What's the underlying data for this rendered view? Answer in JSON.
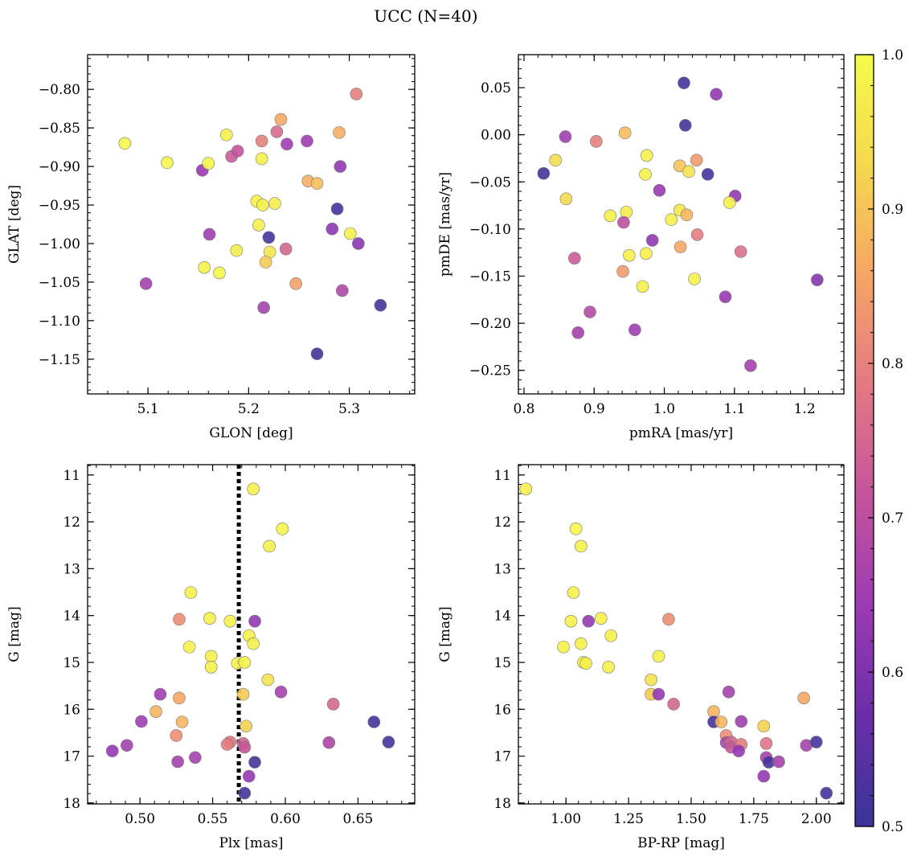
{
  "title": "UCC (N=40)",
  "chart_data": [
    {
      "type": "scatter",
      "xlabel": "GLON [deg]",
      "ylabel": "GLAT [deg]",
      "xlim": [
        5.04,
        5.365
      ],
      "ylim": [
        -1.195,
        -0.755
      ],
      "yinvert": false,
      "xticks": [
        5.1,
        5.2,
        5.3
      ],
      "xtick_labels": [
        "5.1",
        "5.2",
        "5.3"
      ],
      "yticks": [
        -0.8,
        -0.85,
        -0.9,
        -0.95,
        -1.0,
        -1.05,
        -1.1,
        -1.15
      ],
      "ytick_labels": [
        "−0.80",
        "−0.85",
        "−0.90",
        "−0.95",
        "−1.00",
        "−1.05",
        "−1.10",
        "−1.15"
      ],
      "points": [
        {
          "x": 5.077,
          "y": -0.87,
          "c": 0.99
        },
        {
          "x": 5.119,
          "y": -0.895,
          "c": 0.99
        },
        {
          "x": 5.098,
          "y": -1.052,
          "c": 0.66
        },
        {
          "x": 5.154,
          "y": -0.905,
          "c": 0.64
        },
        {
          "x": 5.16,
          "y": -0.896,
          "c": 0.99
        },
        {
          "x": 5.178,
          "y": -0.859,
          "c": 0.98
        },
        {
          "x": 5.183,
          "y": -0.887,
          "c": 0.73
        },
        {
          "x": 5.189,
          "y": -0.88,
          "c": 0.71
        },
        {
          "x": 5.161,
          "y": -0.988,
          "c": 0.65
        },
        {
          "x": 5.156,
          "y": -1.031,
          "c": 0.98
        },
        {
          "x": 5.171,
          "y": -1.038,
          "c": 0.99
        },
        {
          "x": 5.188,
          "y": -1.009,
          "c": 0.97
        },
        {
          "x": 5.213,
          "y": -0.867,
          "c": 0.8
        },
        {
          "x": 5.213,
          "y": -0.89,
          "c": 0.98
        },
        {
          "x": 5.228,
          "y": -0.855,
          "c": 0.76
        },
        {
          "x": 5.232,
          "y": -0.839,
          "c": 0.86
        },
        {
          "x": 5.238,
          "y": -0.871,
          "c": 0.65
        },
        {
          "x": 5.208,
          "y": -0.945,
          "c": 0.98
        },
        {
          "x": 5.214,
          "y": -0.95,
          "c": 0.98
        },
        {
          "x": 5.226,
          "y": -0.948,
          "c": 0.97
        },
        {
          "x": 5.21,
          "y": -0.976,
          "c": 0.98
        },
        {
          "x": 5.22,
          "y": -0.992,
          "c": 0.52
        },
        {
          "x": 5.221,
          "y": -1.011,
          "c": 0.96
        },
        {
          "x": 5.217,
          "y": -1.024,
          "c": 0.91
        },
        {
          "x": 5.237,
          "y": -1.007,
          "c": 0.75
        },
        {
          "x": 5.215,
          "y": -1.083,
          "c": 0.66
        },
        {
          "x": 5.258,
          "y": -0.867,
          "c": 0.65
        },
        {
          "x": 5.259,
          "y": -0.919,
          "c": 0.87
        },
        {
          "x": 5.268,
          "y": -0.922,
          "c": 0.89
        },
        {
          "x": 5.247,
          "y": -1.052,
          "c": 0.85
        },
        {
          "x": 5.268,
          "y": -1.143,
          "c": 0.51
        },
        {
          "x": 5.29,
          "y": -0.856,
          "c": 0.87
        },
        {
          "x": 5.307,
          "y": -0.806,
          "c": 0.8
        },
        {
          "x": 5.291,
          "y": -0.9,
          "c": 0.63
        },
        {
          "x": 5.288,
          "y": -0.955,
          "c": 0.52
        },
        {
          "x": 5.283,
          "y": -0.981,
          "c": 0.62
        },
        {
          "x": 5.301,
          "y": -0.987,
          "c": 0.98
        },
        {
          "x": 5.309,
          "y": -1.0,
          "c": 0.62
        },
        {
          "x": 5.293,
          "y": -1.061,
          "c": 0.68
        },
        {
          "x": 5.331,
          "y": -1.08,
          "c": 0.52
        }
      ]
    },
    {
      "type": "scatter",
      "xlabel": "pmRA [mas/yr]",
      "ylabel": "pmDE [mas/yr]",
      "xlim": [
        0.792,
        1.256
      ],
      "ylim": [
        -0.275,
        0.085
      ],
      "yinvert": false,
      "xticks": [
        0.8,
        0.9,
        1.0,
        1.1,
        1.2
      ],
      "xtick_labels": [
        "0.8",
        "0.9",
        "1.0",
        "1.1",
        "1.2"
      ],
      "yticks": [
        0.05,
        0.0,
        -0.05,
        -0.1,
        -0.15,
        -0.2,
        -0.25
      ],
      "ytick_labels": [
        "0.05",
        "0.00",
        "−0.05",
        "−0.10",
        "−0.15",
        "−0.20",
        "−0.25"
      ],
      "points": [
        {
          "x": 1.028,
          "y": 0.055,
          "c": 0.52
        },
        {
          "x": 1.074,
          "y": 0.043,
          "c": 0.63
        },
        {
          "x": 1.03,
          "y": 0.01,
          "c": 0.52
        },
        {
          "x": 0.859,
          "y": -0.002,
          "c": 0.65
        },
        {
          "x": 0.903,
          "y": -0.007,
          "c": 0.8
        },
        {
          "x": 0.944,
          "y": 0.002,
          "c": 0.89
        },
        {
          "x": 0.845,
          "y": -0.027,
          "c": 0.94
        },
        {
          "x": 0.828,
          "y": -0.041,
          "c": 0.52
        },
        {
          "x": 0.975,
          "y": -0.022,
          "c": 0.98
        },
        {
          "x": 0.973,
          "y": -0.042,
          "c": 0.98
        },
        {
          "x": 1.022,
          "y": -0.033,
          "c": 0.9
        },
        {
          "x": 1.035,
          "y": -0.039,
          "c": 0.95
        },
        {
          "x": 1.046,
          "y": -0.027,
          "c": 0.84
        },
        {
          "x": 1.062,
          "y": -0.042,
          "c": 0.52
        },
        {
          "x": 0.993,
          "y": -0.059,
          "c": 0.64
        },
        {
          "x": 1.101,
          "y": -0.065,
          "c": 0.63
        },
        {
          "x": 0.86,
          "y": -0.068,
          "c": 0.93
        },
        {
          "x": 1.093,
          "y": -0.072,
          "c": 0.98
        },
        {
          "x": 0.923,
          "y": -0.086,
          "c": 0.98
        },
        {
          "x": 0.946,
          "y": -0.082,
          "c": 0.97
        },
        {
          "x": 1.01,
          "y": -0.09,
          "c": 0.98
        },
        {
          "x": 1.022,
          "y": -0.08,
          "c": 0.96
        },
        {
          "x": 1.032,
          "y": -0.085,
          "c": 0.88
        },
        {
          "x": 0.983,
          "y": -0.112,
          "c": 0.63
        },
        {
          "x": 1.023,
          "y": -0.119,
          "c": 0.86
        },
        {
          "x": 1.047,
          "y": -0.106,
          "c": 0.79
        },
        {
          "x": 1.109,
          "y": -0.124,
          "c": 0.77
        },
        {
          "x": 0.95,
          "y": -0.128,
          "c": 0.98
        },
        {
          "x": 0.974,
          "y": -0.126,
          "c": 0.98
        },
        {
          "x": 0.872,
          "y": -0.131,
          "c": 0.73
        },
        {
          "x": 0.941,
          "y": -0.145,
          "c": 0.84
        },
        {
          "x": 0.969,
          "y": -0.161,
          "c": 0.98
        },
        {
          "x": 1.043,
          "y": -0.153,
          "c": 0.98
        },
        {
          "x": 1.218,
          "y": -0.154,
          "c": 0.61
        },
        {
          "x": 1.087,
          "y": -0.172,
          "c": 0.64
        },
        {
          "x": 0.942,
          "y": -0.093,
          "c": 0.7
        },
        {
          "x": 0.894,
          "y": -0.188,
          "c": 0.69
        },
        {
          "x": 0.877,
          "y": -0.21,
          "c": 0.66
        },
        {
          "x": 0.958,
          "y": -0.207,
          "c": 0.65
        },
        {
          "x": 1.123,
          "y": -0.245,
          "c": 0.66
        }
      ]
    },
    {
      "type": "scatter",
      "xlabel": "Plx [mas]",
      "ylabel": "G [mag]",
      "xlim": [
        0.464,
        0.689
      ],
      "ylim": [
        18.02,
        10.78
      ],
      "yinvert": true,
      "xticks": [
        0.5,
        0.55,
        0.6,
        0.65
      ],
      "xtick_labels": [
        "0.50",
        "0.55",
        "0.60",
        "0.65"
      ],
      "yticks": [
        11,
        12,
        13,
        14,
        15,
        16,
        17,
        18
      ],
      "ytick_labels": [
        "11",
        "12",
        "13",
        "14",
        "15",
        "16",
        "17",
        "18"
      ],
      "vline": 0.568,
      "points": [
        {
          "x": 0.578,
          "y": 11.3,
          "c": 0.98
        },
        {
          "x": 0.598,
          "y": 12.15,
          "c": 0.99
        },
        {
          "x": 0.589,
          "y": 12.52,
          "c": 0.98
        },
        {
          "x": 0.535,
          "y": 13.51,
          "c": 0.98
        },
        {
          "x": 0.527,
          "y": 14.08,
          "c": 0.82
        },
        {
          "x": 0.548,
          "y": 14.06,
          "c": 0.98
        },
        {
          "x": 0.562,
          "y": 14.12,
          "c": 0.98
        },
        {
          "x": 0.579,
          "y": 14.12,
          "c": 0.63
        },
        {
          "x": 0.575,
          "y": 14.43,
          "c": 0.98
        },
        {
          "x": 0.578,
          "y": 14.6,
          "c": 0.98
        },
        {
          "x": 0.534,
          "y": 14.67,
          "c": 0.98
        },
        {
          "x": 0.549,
          "y": 14.87,
          "c": 0.98
        },
        {
          "x": 0.549,
          "y": 15.1,
          "c": 0.98
        },
        {
          "x": 0.567,
          "y": 15.02,
          "c": 0.98
        },
        {
          "x": 0.572,
          "y": 15.0,
          "c": 0.98
        },
        {
          "x": 0.588,
          "y": 15.37,
          "c": 0.95
        },
        {
          "x": 0.597,
          "y": 15.63,
          "c": 0.66
        },
        {
          "x": 0.571,
          "y": 15.68,
          "c": 0.91
        },
        {
          "x": 0.514,
          "y": 15.68,
          "c": 0.65
        },
        {
          "x": 0.527,
          "y": 15.76,
          "c": 0.86
        },
        {
          "x": 0.633,
          "y": 15.89,
          "c": 0.75
        },
        {
          "x": 0.511,
          "y": 16.05,
          "c": 0.88
        },
        {
          "x": 0.501,
          "y": 16.26,
          "c": 0.65
        },
        {
          "x": 0.529,
          "y": 16.27,
          "c": 0.88
        },
        {
          "x": 0.661,
          "y": 16.27,
          "c": 0.52
        },
        {
          "x": 0.573,
          "y": 16.36,
          "c": 0.92
        },
        {
          "x": 0.525,
          "y": 16.56,
          "c": 0.82
        },
        {
          "x": 0.562,
          "y": 16.7,
          "c": 0.78
        },
        {
          "x": 0.571,
          "y": 16.73,
          "c": 0.75
        },
        {
          "x": 0.63,
          "y": 16.71,
          "c": 0.67
        },
        {
          "x": 0.671,
          "y": 16.7,
          "c": 0.52
        },
        {
          "x": 0.56,
          "y": 16.75,
          "c": 0.79
        },
        {
          "x": 0.572,
          "y": 16.81,
          "c": 0.72
        },
        {
          "x": 0.491,
          "y": 16.77,
          "c": 0.66
        },
        {
          "x": 0.481,
          "y": 16.89,
          "c": 0.63
        },
        {
          "x": 0.538,
          "y": 17.03,
          "c": 0.66
        },
        {
          "x": 0.526,
          "y": 17.12,
          "c": 0.66
        },
        {
          "x": 0.579,
          "y": 17.13,
          "c": 0.52
        },
        {
          "x": 0.575,
          "y": 17.43,
          "c": 0.63
        },
        {
          "x": 0.572,
          "y": 17.79,
          "c": 0.52
        }
      ]
    },
    {
      "type": "scatter",
      "xlabel": "BP-RP [mag]",
      "ylabel": "G [mag]",
      "xlim": [
        0.81,
        2.11
      ],
      "ylim": [
        18.02,
        10.78
      ],
      "yinvert": true,
      "xticks": [
        1.0,
        1.25,
        1.5,
        1.75,
        2.0
      ],
      "xtick_labels": [
        "1.00",
        "1.25",
        "1.50",
        "1.75",
        "2.00"
      ],
      "yticks": [
        11,
        12,
        13,
        14,
        15,
        16,
        17,
        18
      ],
      "ytick_labels": [
        "11",
        "12",
        "13",
        "14",
        "15",
        "16",
        "17",
        "18"
      ],
      "points": [
        {
          "x": 0.84,
          "y": 11.3,
          "c": 0.98
        },
        {
          "x": 1.04,
          "y": 12.15,
          "c": 0.99
        },
        {
          "x": 1.06,
          "y": 12.52,
          "c": 0.98
        },
        {
          "x": 1.03,
          "y": 13.51,
          "c": 0.98
        },
        {
          "x": 1.02,
          "y": 14.12,
          "c": 0.98
        },
        {
          "x": 1.09,
          "y": 14.12,
          "c": 0.63
        },
        {
          "x": 1.14,
          "y": 14.06,
          "c": 0.98
        },
        {
          "x": 1.41,
          "y": 14.08,
          "c": 0.82
        },
        {
          "x": 1.18,
          "y": 14.43,
          "c": 0.98
        },
        {
          "x": 0.99,
          "y": 14.67,
          "c": 0.98
        },
        {
          "x": 1.06,
          "y": 14.6,
          "c": 0.98
        },
        {
          "x": 1.07,
          "y": 15.0,
          "c": 0.98
        },
        {
          "x": 1.08,
          "y": 15.02,
          "c": 0.98
        },
        {
          "x": 1.17,
          "y": 15.1,
          "c": 0.98
        },
        {
          "x": 1.37,
          "y": 14.87,
          "c": 0.98
        },
        {
          "x": 1.34,
          "y": 15.37,
          "c": 0.95
        },
        {
          "x": 1.34,
          "y": 15.68,
          "c": 0.91
        },
        {
          "x": 1.37,
          "y": 15.68,
          "c": 0.63
        },
        {
          "x": 1.43,
          "y": 15.89,
          "c": 0.75
        },
        {
          "x": 1.65,
          "y": 15.63,
          "c": 0.66
        },
        {
          "x": 1.95,
          "y": 15.76,
          "c": 0.86
        },
        {
          "x": 1.59,
          "y": 16.05,
          "c": 0.88
        },
        {
          "x": 1.59,
          "y": 16.27,
          "c": 0.52
        },
        {
          "x": 1.62,
          "y": 16.27,
          "c": 0.88
        },
        {
          "x": 1.7,
          "y": 16.26,
          "c": 0.65
        },
        {
          "x": 1.79,
          "y": 16.36,
          "c": 0.92
        },
        {
          "x": 1.64,
          "y": 16.56,
          "c": 0.82
        },
        {
          "x": 1.64,
          "y": 16.71,
          "c": 0.67
        },
        {
          "x": 1.66,
          "y": 16.7,
          "c": 0.75
        },
        {
          "x": 1.66,
          "y": 16.81,
          "c": 0.72
        },
        {
          "x": 1.7,
          "y": 16.75,
          "c": 0.79
        },
        {
          "x": 1.8,
          "y": 16.73,
          "c": 0.78
        },
        {
          "x": 1.69,
          "y": 16.89,
          "c": 0.63
        },
        {
          "x": 1.96,
          "y": 16.77,
          "c": 0.66
        },
        {
          "x": 2.0,
          "y": 16.7,
          "c": 0.52
        },
        {
          "x": 1.8,
          "y": 17.03,
          "c": 0.66
        },
        {
          "x": 1.81,
          "y": 17.13,
          "c": 0.52
        },
        {
          "x": 1.85,
          "y": 17.12,
          "c": 0.66
        },
        {
          "x": 1.79,
          "y": 17.43,
          "c": 0.63
        },
        {
          "x": 2.04,
          "y": 17.79,
          "c": 0.52
        }
      ]
    }
  ],
  "colorbar": {
    "vmin": 0.5,
    "vmax": 1.0,
    "ticks": [
      0.5,
      0.6,
      0.7,
      0.8,
      0.9,
      1.0
    ],
    "tick_labels": [
      "0.5",
      "0.6",
      "0.7",
      "0.8",
      "0.9",
      "1.0"
    ],
    "colormap": "plasma",
    "stops": [
      "#3a3597",
      "#6a2ea8",
      "#9b3bb3",
      "#c4549c",
      "#e27983",
      "#f6a566",
      "#f5d84e",
      "#f4fb4a"
    ]
  }
}
